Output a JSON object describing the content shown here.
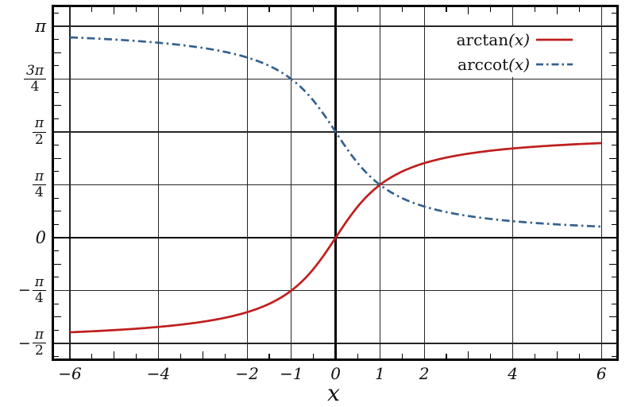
{
  "figure": {
    "background": "#ffffff",
    "border_color": "#000000",
    "grid_color": "#262626",
    "axis_color": "#000000"
  },
  "chart_data": {
    "type": "line",
    "title": "",
    "xlabel": "x",
    "ylabel": "",
    "x_range": [
      -6.38,
      6.38
    ],
    "y_range_rad": [
      -1.81,
      3.44
    ],
    "grid": "on",
    "x_gridlines": [
      -6,
      -4,
      -2,
      -1,
      0,
      1,
      2,
      4,
      6
    ],
    "x_ticks": [
      {
        "text": "−6",
        "x": -6
      },
      {
        "text": "−4",
        "x": -4
      },
      {
        "text": "−2",
        "x": -2
      },
      {
        "text": "−1",
        "x": -1
      },
      {
        "text": "0",
        "x": 0
      },
      {
        "text": "1",
        "x": 1
      },
      {
        "text": "2",
        "x": 2
      },
      {
        "text": "4",
        "x": 4
      },
      {
        "text": "6",
        "x": 6
      }
    ],
    "y_ticks": [
      {
        "text": "π",
        "y": 3.14159265
      },
      {
        "text": "3π/4",
        "y": 2.35619449
      },
      {
        "text": "π/2",
        "y": 1.57079633
      },
      {
        "text": "π/4",
        "y": 0.78539816
      },
      {
        "text": "0",
        "y": 0
      },
      {
        "text": "−π/4",
        "y": -0.78539816
      },
      {
        "text": "−π/2",
        "y": -1.57079633
      }
    ],
    "minor_x_tick_step": 0.5,
    "minor_y_tick_step_rad": 0.19634954,
    "legend_position": "top-right",
    "series": [
      {
        "name": "arctan",
        "legend_fn": "arctan",
        "legend_arg": "(x)",
        "fn": "atan",
        "color": "#c01e1e",
        "style": "solid",
        "domain": [
          -6,
          6
        ],
        "x": [
          -6,
          -5.5,
          -5,
          -4.5,
          -4,
          -3.5,
          -3,
          -2.5,
          -2,
          -1.5,
          -1,
          -0.5,
          0,
          0.5,
          1,
          1.5,
          2,
          2.5,
          3,
          3.5,
          4,
          4.5,
          5,
          5.5,
          6
        ],
        "y": [
          -1.4056,
          -1.3909,
          -1.3734,
          -1.3521,
          -1.3258,
          -1.2925,
          -1.249,
          -1.1903,
          -1.1071,
          -0.9828,
          -0.7854,
          -0.4636,
          0,
          0.4636,
          0.7854,
          0.9828,
          1.1071,
          1.1903,
          1.249,
          1.2925,
          1.3258,
          1.3521,
          1.3734,
          1.3909,
          1.4056
        ]
      },
      {
        "name": "arccot",
        "legend_fn": "arccot",
        "legend_arg": "(x)",
        "fn": "acot",
        "color": "#35618f",
        "style": "dashdot",
        "domain": [
          -6,
          6
        ],
        "x": [
          -6,
          -5.5,
          -5,
          -4.5,
          -4,
          -3.5,
          -3,
          -2.5,
          -2,
          -1.5,
          -1,
          -0.5,
          0,
          0.5,
          1,
          1.5,
          2,
          2.5,
          3,
          3.5,
          4,
          4.5,
          5,
          5.5,
          6
        ],
        "y": [
          2.9764,
          2.9617,
          2.9442,
          2.9229,
          2.8966,
          2.8633,
          2.8198,
          2.7611,
          2.6779,
          2.5536,
          2.3562,
          2.0344,
          1.5708,
          1.1071,
          0.7854,
          0.588,
          0.4636,
          0.3805,
          0.3217,
          0.2783,
          0.245,
          0.2187,
          0.1974,
          0.1799,
          0.1651
        ]
      }
    ]
  }
}
